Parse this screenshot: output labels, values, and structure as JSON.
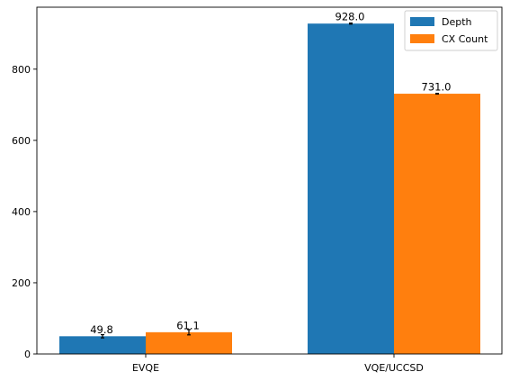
{
  "chart_data": {
    "type": "bar",
    "title": "",
    "xlabel": "",
    "ylabel": "",
    "categories": [
      "EVQE",
      "VQE/UCCSD"
    ],
    "series": [
      {
        "name": "Depth",
        "values": [
          49.8,
          928.0
        ],
        "errors": [
          4.5,
          1.5
        ],
        "labels": [
          "49.8",
          "928.0"
        ],
        "color": "#1f77b4"
      },
      {
        "name": "CX Count",
        "values": [
          61.1,
          731.0
        ],
        "errors": [
          7.5,
          1.0
        ],
        "labels": [
          "61.1",
          "731.0"
        ],
        "color": "#ff7f0e"
      }
    ],
    "ylim": [
      0,
      974
    ],
    "yticks": [
      0,
      200,
      400,
      600,
      800
    ],
    "ytick_labels": [
      "0",
      "200",
      "400",
      "600",
      "800"
    ],
    "grid": false,
    "legend": "top-right"
  }
}
